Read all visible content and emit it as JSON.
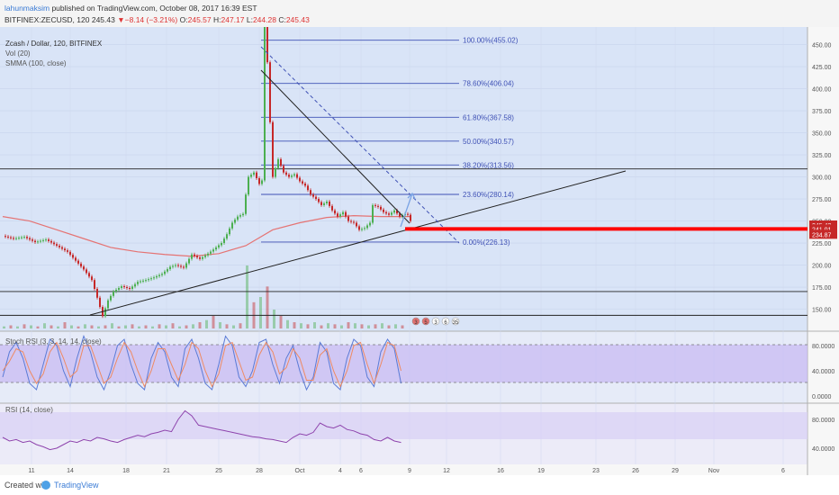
{
  "header": {
    "line1": {
      "user": "lahunmaksim",
      "text": " published on TradingView.com, October 08, 2017 16:39 EST"
    },
    "line2": {
      "symbol": "BITFINEX:ZECUSD, 120",
      "last": "245.43",
      "change": "−8.14 (−3.21%)",
      "o_label": "O:",
      "o": "245.57",
      "h_label": "H:",
      "h": "247.17",
      "l_label": "L:",
      "l": "244.28",
      "c_label": "C:",
      "c": "245.43"
    }
  },
  "legend": {
    "title": "Zcash / Dollar, 120, BITFINEX",
    "vol": "Vol (20)",
    "smma": "SMMA (100, close)"
  },
  "indicators": {
    "stoch_label": "Stoch RSI (3, 3, 14, 14, close)",
    "rsi_label": "RSI (14, close)",
    "stoch_ticks": [
      "80.0000",
      "40.0000",
      "0.0000"
    ],
    "rsi_ticks": [
      "80.0000",
      "40.0000"
    ]
  },
  "footer": {
    "created": "Created with",
    "brand": "TradingView"
  },
  "colors": {
    "up": "#4caf50",
    "down": "#c62828",
    "smma": "#e57373",
    "fib": "#3f51b5",
    "stoch_k": "#5b7bd6",
    "stoch_d": "#ef8a62",
    "rsi": "#8e44ad",
    "red_line": "#ff0000"
  },
  "events": [
    "3",
    "5",
    "3",
    "6",
    "35"
  ],
  "chart_data": {
    "type": "candlestick",
    "ylim": [
      125,
      470
    ],
    "price_ticks": [
      150,
      175,
      200,
      225,
      250,
      275,
      300,
      325,
      350,
      375,
      400,
      425,
      450
    ],
    "price_tick_labels": [
      "150.00",
      "175.00",
      "200.00",
      "225.00",
      "250.00",
      "275.00",
      "300.00",
      "325.00",
      "350.00",
      "375.00",
      "400.00",
      "425.00",
      "450.00"
    ],
    "x_ticks": [
      "11",
      "14",
      "18",
      "21",
      "25",
      "28",
      "Oct",
      "4",
      "6",
      "9",
      "12",
      "16",
      "19",
      "23",
      "26",
      "29",
      "Nov",
      "6"
    ],
    "price_badges": [
      {
        "value": 245.43,
        "label": "245.43",
        "color": "#c62828"
      },
      {
        "value": 241.01,
        "label": "241.01",
        "color": "#c62828"
      },
      {
        "value": 234.87,
        "label": "234.87",
        "color": "#c62828"
      }
    ],
    "fib_levels": [
      {
        "label": "100.00%(455.02)",
        "value": 455.02
      },
      {
        "label": "78.60%(406.04)",
        "value": 406.04
      },
      {
        "label": "61.80%(367.58)",
        "value": 367.58
      },
      {
        "label": "50.00%(340.57)",
        "value": 340.57
      },
      {
        "label": "38.20%(313.56)",
        "value": 313.56
      },
      {
        "label": "23.60%(280.14)",
        "value": 280.14
      },
      {
        "label": "0.00%(226.13)",
        "value": 226.13
      }
    ],
    "horizontal_levels": [
      309,
      170,
      143
    ],
    "red_level": 241,
    "price_path": [
      [
        0,
        233
      ],
      [
        4,
        230
      ],
      [
        8,
        232
      ],
      [
        12,
        226
      ],
      [
        16,
        229
      ],
      [
        20,
        222
      ],
      [
        24,
        215
      ],
      [
        27,
        205
      ],
      [
        30,
        195
      ],
      [
        33,
        183
      ],
      [
        35,
        163
      ],
      [
        37,
        142
      ],
      [
        39,
        160
      ],
      [
        41,
        170
      ],
      [
        44,
        176
      ],
      [
        47,
        173
      ],
      [
        50,
        181
      ],
      [
        53,
        183
      ],
      [
        56,
        186
      ],
      [
        59,
        190
      ],
      [
        62,
        198
      ],
      [
        64,
        200
      ],
      [
        67,
        197
      ],
      [
        70,
        212
      ],
      [
        73,
        207
      ],
      [
        76,
        213
      ],
      [
        79,
        220
      ],
      [
        81,
        225
      ],
      [
        83,
        235
      ],
      [
        85,
        248
      ],
      [
        87,
        255
      ],
      [
        89,
        258
      ],
      [
        90,
        280
      ],
      [
        91,
        300
      ],
      [
        93,
        305
      ],
      [
        95,
        292
      ],
      [
        96,
        296
      ],
      [
        97,
        470
      ],
      [
        98,
        430
      ],
      [
        99,
        362
      ],
      [
        100,
        300
      ],
      [
        102,
        320
      ],
      [
        104,
        305
      ],
      [
        106,
        300
      ],
      [
        108,
        303
      ],
      [
        110,
        295
      ],
      [
        112,
        290
      ],
      [
        114,
        280
      ],
      [
        116,
        275
      ],
      [
        118,
        268
      ],
      [
        120,
        272
      ],
      [
        122,
        262
      ],
      [
        124,
        255
      ],
      [
        126,
        260
      ],
      [
        128,
        250
      ],
      [
        130,
        248
      ],
      [
        132,
        240
      ],
      [
        134,
        242
      ],
      [
        136,
        248
      ],
      [
        137,
        268
      ],
      [
        139,
        266
      ],
      [
        141,
        260
      ],
      [
        143,
        257
      ],
      [
        145,
        262
      ],
      [
        147,
        255
      ],
      [
        149,
        258
      ],
      [
        150,
        257
      ],
      [
        151,
        250
      ]
    ],
    "smma_path": [
      [
        0,
        255
      ],
      [
        10,
        250
      ],
      [
        20,
        240
      ],
      [
        30,
        230
      ],
      [
        40,
        220
      ],
      [
        50,
        215
      ],
      [
        60,
        212
      ],
      [
        70,
        210
      ],
      [
        80,
        213
      ],
      [
        90,
        222
      ],
      [
        100,
        240
      ],
      [
        110,
        248
      ],
      [
        120,
        254
      ],
      [
        130,
        256
      ],
      [
        140,
        255
      ],
      [
        151,
        255
      ]
    ],
    "volume": [
      2,
      3,
      2,
      4,
      3,
      2,
      5,
      3,
      2,
      6,
      3,
      2,
      4,
      3,
      2,
      3,
      5,
      2,
      3,
      4,
      2,
      3,
      2,
      4,
      3,
      5,
      2,
      3,
      4,
      6,
      8,
      12,
      6,
      4,
      3,
      5,
      60,
      25,
      30,
      40,
      18,
      12,
      8,
      6,
      5,
      4,
      6,
      3,
      5,
      4,
      3,
      6,
      5,
      4,
      3,
      4,
      5,
      3,
      4,
      3
    ],
    "stoch_rsi_k": [
      30,
      70,
      85,
      60,
      20,
      10,
      50,
      90,
      80,
      40,
      15,
      60,
      95,
      70,
      30,
      10,
      40,
      80,
      90,
      50,
      20,
      10,
      60,
      85,
      70,
      30,
      15,
      75,
      90,
      60,
      20,
      10,
      50,
      95,
      80,
      30,
      15,
      40,
      85,
      90,
      50,
      20,
      60,
      80,
      40,
      10,
      30,
      85,
      70,
      20,
      10,
      60,
      90,
      80,
      30,
      15,
      70,
      90,
      75,
      20
    ],
    "stoch_rsi_d": [
      40,
      55,
      75,
      70,
      40,
      20,
      35,
      70,
      85,
      60,
      30,
      40,
      80,
      80,
      50,
      20,
      30,
      60,
      85,
      70,
      40,
      15,
      40,
      75,
      75,
      50,
      25,
      50,
      85,
      75,
      40,
      15,
      35,
      80,
      85,
      55,
      25,
      30,
      65,
      85,
      70,
      35,
      45,
      75,
      60,
      25,
      25,
      65,
      75,
      40,
      15,
      40,
      80,
      85,
      50,
      20,
      50,
      85,
      80,
      40
    ],
    "rsi": [
      55,
      50,
      52,
      48,
      50,
      45,
      42,
      38,
      40,
      45,
      50,
      48,
      52,
      50,
      55,
      53,
      50,
      48,
      52,
      55,
      58,
      56,
      60,
      62,
      65,
      63,
      80,
      92,
      85,
      72,
      70,
      68,
      66,
      64,
      62,
      60,
      58,
      56,
      55,
      53,
      52,
      50,
      48,
      55,
      60,
      58,
      62,
      75,
      70,
      68,
      72,
      66,
      64,
      60,
      58,
      52,
      50,
      55,
      50,
      48
    ]
  }
}
